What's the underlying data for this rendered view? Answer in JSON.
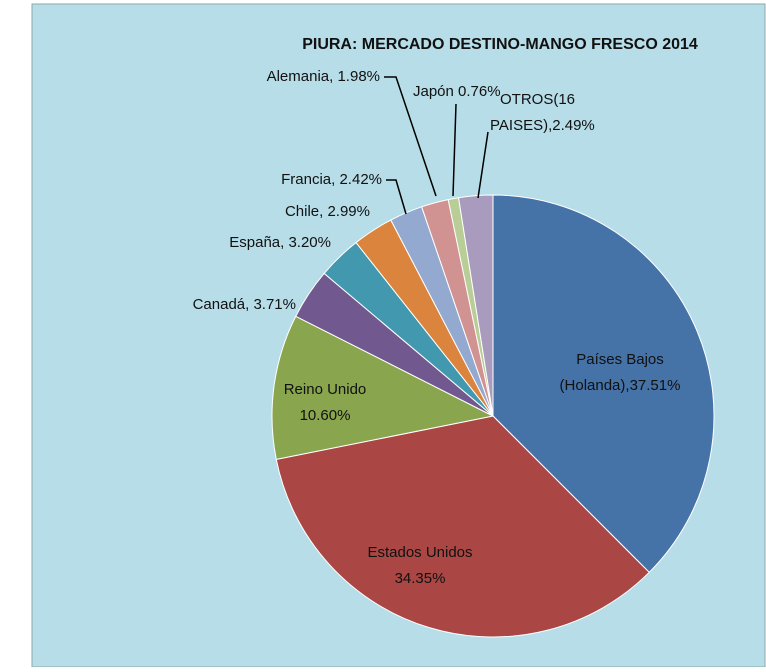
{
  "chart_data": {
    "type": "pie",
    "title": "PIURA: MERCADO DESTINO-MANGO FRESCO 2014",
    "values": [
      37.51,
      34.35,
      10.6,
      3.71,
      3.2,
      2.99,
      2.42,
      1.98,
      0.76,
      2.49
    ],
    "value_labels": [
      [
        "Países Bajos",
        "(Holanda),37.51%"
      ],
      [
        "Estados Unidos",
        "34.35%"
      ],
      [
        "Reino Unido",
        "10.60%"
      ],
      [
        "Canadá, 3.71%"
      ],
      [
        "España, 3.20%"
      ],
      [
        "Chile, 2.99%"
      ],
      [
        "Francia, 2.42%"
      ],
      [
        "Alemania, 1.98%"
      ],
      [
        "Japón 0.76%"
      ],
      [
        "OTROS(16",
        "PAISES),2.49%"
      ]
    ],
    "colors": [
      "#4572a7",
      "#aa4643",
      "#89a54e",
      "#71588f",
      "#4198af",
      "#db843d",
      "#93a9cf",
      "#d19392",
      "#b9cd96",
      "#a99bbd"
    ]
  }
}
